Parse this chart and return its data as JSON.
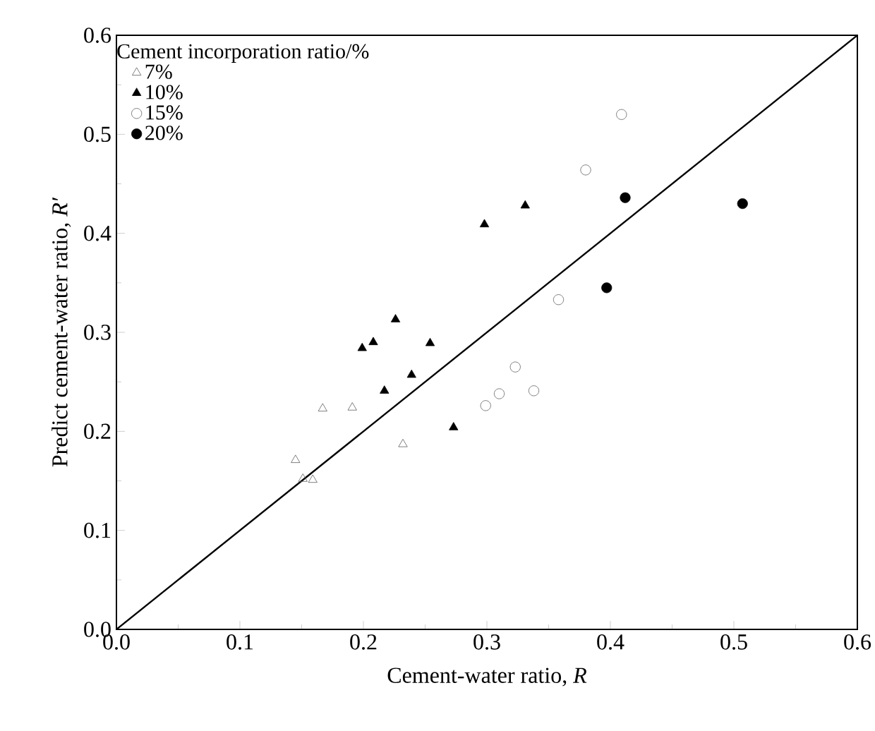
{
  "chart_data": {
    "type": "scatter",
    "xlabel": "Cement-water ratio, *R*",
    "ylabel": "Predict cement-water ratio, *R′*",
    "legend_title": "Cement incorporation ratio/%",
    "legend": "top left",
    "xlim": [
      0,
      0.6
    ],
    "ylim": [
      0,
      0.6
    ],
    "xticks": [
      {
        "value": 0,
        "label": "0.0"
      },
      0.1,
      0.2,
      0.3,
      0.4,
      0.5,
      0.6
    ],
    "yticks": [
      {
        "value": 0,
        "label": "0.0"
      },
      0.1,
      0.2,
      0.3,
      0.4,
      0.5,
      0.6
    ],
    "grid": false,
    "series": [
      {
        "name": "7%",
        "color": "#606060",
        "marker": "triangle-open",
        "x": [
          0.145,
          0.151,
          0.159,
          0.167,
          0.191,
          0.232
        ],
        "values": [
          0.171,
          0.152,
          0.151,
          0.223,
          0.224,
          0.187
        ]
      },
      {
        "name": "10%",
        "color": "#000000",
        "marker": "triangle",
        "x": [
          0.199,
          0.208,
          0.226,
          0.254,
          0.239,
          0.217,
          0.273,
          0.298,
          0.331
        ],
        "values": [
          0.284,
          0.29,
          0.313,
          0.289,
          0.257,
          0.241,
          0.204,
          0.409,
          0.428
        ]
      },
      {
        "name": "15%",
        "color": "#606060",
        "marker": "circle-open",
        "x": [
          0.299,
          0.31,
          0.323,
          0.338,
          0.358,
          0.38,
          0.409
        ],
        "values": [
          0.226,
          0.238,
          0.265,
          0.241,
          0.333,
          0.464,
          0.52
        ]
      },
      {
        "name": "20%",
        "color": "#000000",
        "marker": "circle",
        "x": [
          0.412,
          0.507,
          0.397
        ],
        "values": [
          0.436,
          0.43,
          0.345
        ]
      },
      {
        "type": "line",
        "color": "#000000",
        "marker": "none",
        "line_style": "solid",
        "x": [
          0,
          0.6
        ],
        "values": [
          0,
          0.6
        ]
      }
    ]
  }
}
